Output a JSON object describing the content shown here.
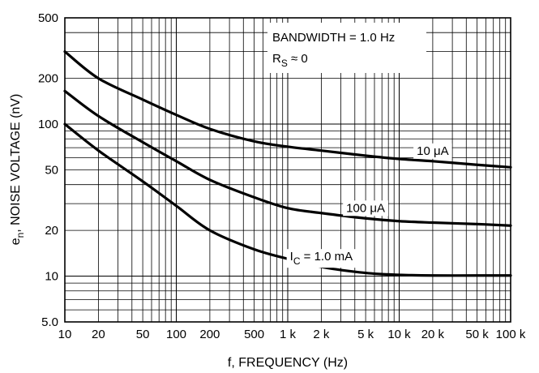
{
  "chart_data": {
    "type": "line",
    "xlabel": "f, FREQUENCY (Hz)",
    "ylabel_main": "e",
    "ylabel_sub": "n",
    "ylabel_rest": ", NOISE VOLTAGE (nV)",
    "x_scale": "log",
    "y_scale": "log",
    "xlim": [
      10,
      100000
    ],
    "ylim": [
      5,
      500
    ],
    "grid": true,
    "x_ticks": [
      {
        "value": 10,
        "label": "10"
      },
      {
        "value": 20,
        "label": "20"
      },
      {
        "value": 50,
        "label": "50"
      },
      {
        "value": 100,
        "label": "100"
      },
      {
        "value": 200,
        "label": "200"
      },
      {
        "value": 500,
        "label": "500"
      },
      {
        "value": 1000,
        "label": "1 k"
      },
      {
        "value": 2000,
        "label": "2 k"
      },
      {
        "value": 5000,
        "label": "5 k"
      },
      {
        "value": 10000,
        "label": "10 k"
      },
      {
        "value": 20000,
        "label": "20 k"
      },
      {
        "value": 50000,
        "label": "50 k"
      },
      {
        "value": 100000,
        "label": "100 k"
      }
    ],
    "y_ticks": [
      {
        "value": 5,
        "label": "5.0"
      },
      {
        "value": 10,
        "label": "10"
      },
      {
        "value": 20,
        "label": "20"
      },
      {
        "value": 50,
        "label": "50"
      },
      {
        "value": 100,
        "label": "100"
      },
      {
        "value": 200,
        "label": "200"
      },
      {
        "value": 500,
        "label": "500"
      }
    ],
    "annotation": {
      "line1": "BANDWIDTH = 1.0 Hz",
      "line2_main": "R",
      "line2_sub": "S",
      "line2_rest": " ≈ 0"
    },
    "series": [
      {
        "label_main": "10 μA",
        "label_at": 20000,
        "x": [
          10,
          20,
          50,
          100,
          200,
          500,
          1000,
          2000,
          5000,
          10000,
          20000,
          50000,
          100000
        ],
        "values": [
          300,
          200,
          145,
          115,
          93,
          77,
          71,
          67,
          62,
          59,
          57,
          54,
          52
        ]
      },
      {
        "label_main": "100 μA",
        "label_at": 5000,
        "x": [
          10,
          20,
          50,
          100,
          200,
          500,
          1000,
          2000,
          5000,
          10000,
          20000,
          50000,
          100000
        ],
        "values": [
          165,
          113,
          76,
          57,
          43,
          33,
          28,
          26,
          24,
          23,
          22.5,
          22,
          21.5
        ]
      },
      {
        "label_main": "I",
        "label_sub": "C",
        "label_rest": " = 1.0 mA",
        "label_at": 2000,
        "x": [
          10,
          20,
          50,
          100,
          200,
          500,
          1000,
          2000,
          5000,
          10000,
          20000,
          50000,
          100000
        ],
        "values": [
          100,
          67,
          42,
          29,
          20,
          15,
          13,
          11.5,
          10.5,
          10.2,
          10.1,
          10.1,
          10.1
        ]
      }
    ]
  }
}
